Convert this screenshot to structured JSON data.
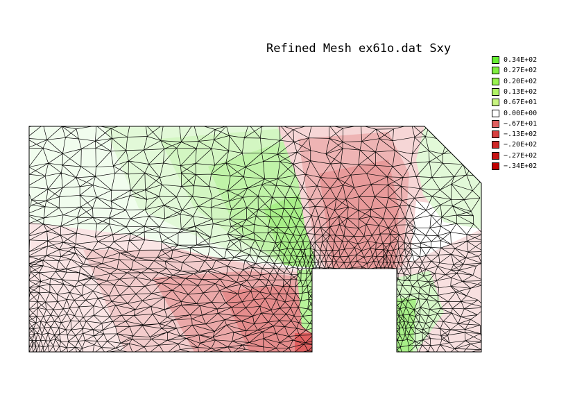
{
  "title": "Refined Mesh ex61o.dat Sxy",
  "legend": [
    {
      "label": "0.34E+02",
      "value": 34,
      "color": "#66ee33"
    },
    {
      "label": "0.27E+02",
      "value": 27,
      "color": "#80f040"
    },
    {
      "label": "0.20E+02",
      "value": 20,
      "color": "#99f250"
    },
    {
      "label": "0.13E+02",
      "value": 13,
      "color": "#b0f466"
    },
    {
      "label": "0.67E+01",
      "value": 6.7,
      "color": "#c8f580"
    },
    {
      "label": "0.00E+00",
      "value": 0,
      "color": "#ffffff"
    },
    {
      "label": "−.67E+01",
      "value": -6.7,
      "color": "#e06060"
    },
    {
      "label": "−.13E+02",
      "value": -13,
      "color": "#d84040"
    },
    {
      "label": "−.20E+02",
      "value": -20,
      "color": "#d02828"
    },
    {
      "label": "−.27E+02",
      "value": -27,
      "color": "#c81414"
    },
    {
      "label": "−.34E+02",
      "value": -34,
      "color": "#c00000"
    }
  ]
}
